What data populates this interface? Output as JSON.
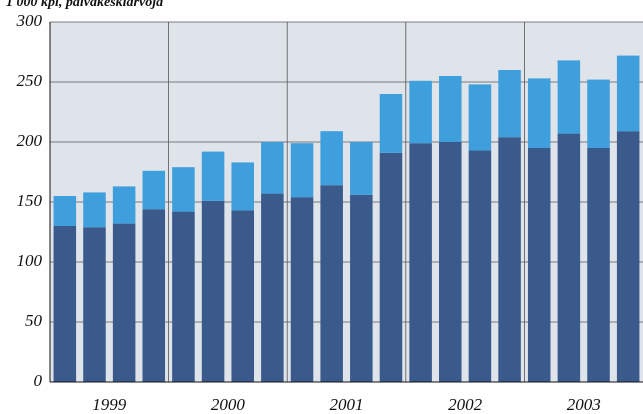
{
  "chart_data": {
    "type": "stacked_bar",
    "subtitle": "1 000 kpl, päiväkeskiarvoja",
    "groups": [
      "1999",
      "2000",
      "2001",
      "2002",
      "2003"
    ],
    "categories": [
      null,
      null,
      null,
      null,
      null,
      null,
      null,
      null,
      null,
      null,
      null,
      null,
      null,
      null,
      null,
      null,
      null,
      null,
      null,
      null
    ],
    "series": [
      {
        "color": "#3a5a8c",
        "values": [
          130,
          129,
          132,
          144,
          142,
          151,
          143,
          157,
          154,
          164,
          156,
          191,
          199,
          200,
          193,
          204,
          195,
          207,
          195,
          209
        ]
      },
      {
        "color": "#3f9fdc",
        "values": [
          25,
          29,
          31,
          32,
          37,
          41,
          40,
          43,
          45,
          45,
          44,
          49,
          52,
          55,
          55,
          56,
          58,
          61,
          57,
          63
        ]
      }
    ],
    "ylim": [
      0,
      300
    ],
    "yticks": [
      0,
      50,
      100,
      150,
      200,
      250,
      300
    ],
    "grid": true
  }
}
